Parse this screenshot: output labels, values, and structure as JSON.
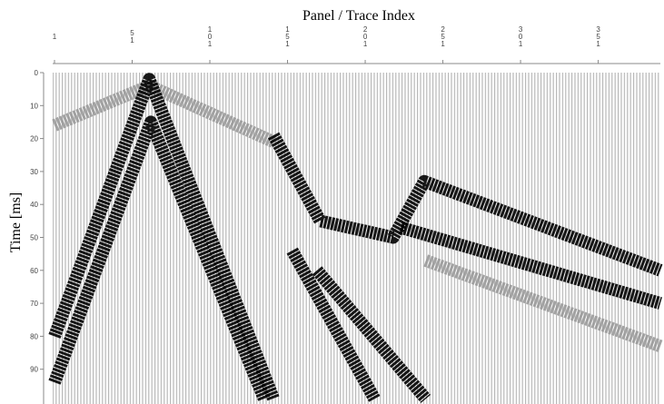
{
  "chart_data": {
    "type": "seismic",
    "title": "Panel / Trace Index",
    "ylabel": "Time [ms]",
    "xlim": [
      1,
      391
    ],
    "ylim": [
      0,
      100
    ],
    "xticks": [
      1,
      51,
      101,
      151,
      201,
      251,
      301,
      351
    ],
    "yticks": [
      0,
      10,
      20,
      30,
      40,
      50,
      60,
      70,
      80,
      90
    ],
    "series": [
      {
        "color": "#9a9a9a",
        "x": [
          1,
          62,
          142
        ],
        "values": [
          16,
          4,
          21
        ]
      },
      {
        "color": "#000000",
        "x": [
          1,
          62,
          142
        ],
        "values": [
          80,
          2,
          99
        ]
      },
      {
        "color": "#000000",
        "x": [
          1,
          63,
          136
        ],
        "values": [
          94,
          15,
          99
        ]
      },
      {
        "color": "#000000",
        "x": [
          142,
          172,
          219,
          239,
          391
        ],
        "values": [
          19,
          45,
          50,
          33,
          60
        ]
      },
      {
        "color": "#000000",
        "x": [
          224,
          391
        ],
        "values": [
          47,
          70
        ]
      },
      {
        "color": "#9a9a9a",
        "x": [
          240,
          391
        ],
        "values": [
          57,
          83
        ]
      },
      {
        "color": "#000000",
        "x": [
          154,
          207
        ],
        "values": [
          54,
          99
        ]
      },
      {
        "color": "#000000",
        "x": [
          170,
          240
        ],
        "values": [
          60,
          99
        ]
      }
    ]
  }
}
